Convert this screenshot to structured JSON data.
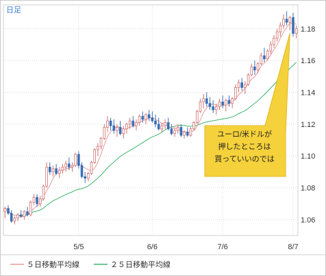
{
  "chart_data": {
    "type": "candlestick",
    "period_label": "日足",
    "y_ticks": [
      1.06,
      1.08,
      1.1,
      1.12,
      1.14,
      1.16,
      1.18
    ],
    "ylim": [
      1.05,
      1.195
    ],
    "x_ticks": [
      "5/5",
      "6/6",
      "7/6",
      "8/7"
    ],
    "x_tick_index": [
      23,
      46,
      68,
      90
    ],
    "grid": true,
    "candles": [
      [
        1.065,
        1.068,
        1.061,
        1.067
      ],
      [
        1.067,
        1.069,
        1.063,
        1.064
      ],
      [
        1.064,
        1.066,
        1.058,
        1.059
      ],
      [
        1.059,
        1.062,
        1.057,
        1.061
      ],
      [
        1.061,
        1.064,
        1.059,
        1.063
      ],
      [
        1.063,
        1.066,
        1.061,
        1.062
      ],
      [
        1.062,
        1.066,
        1.06,
        1.065
      ],
      [
        1.065,
        1.068,
        1.062,
        1.063
      ],
      [
        1.063,
        1.072,
        1.062,
        1.071
      ],
      [
        1.071,
        1.076,
        1.069,
        1.074
      ],
      [
        1.074,
        1.076,
        1.068,
        1.07
      ],
      [
        1.07,
        1.075,
        1.068,
        1.073
      ],
      [
        1.073,
        1.082,
        1.072,
        1.081
      ],
      [
        1.081,
        1.096,
        1.08,
        1.093
      ],
      [
        1.093,
        1.096,
        1.088,
        1.09
      ],
      [
        1.09,
        1.094,
        1.087,
        1.092
      ],
      [
        1.092,
        1.095,
        1.088,
        1.089
      ],
      [
        1.089,
        1.093,
        1.086,
        1.091
      ],
      [
        1.091,
        1.095,
        1.089,
        1.093
      ],
      [
        1.093,
        1.097,
        1.09,
        1.095
      ],
      [
        1.095,
        1.099,
        1.091,
        1.093
      ],
      [
        1.093,
        1.096,
        1.09,
        1.094
      ],
      [
        1.094,
        1.102,
        1.093,
        1.101
      ],
      [
        1.101,
        1.103,
        1.092,
        1.094
      ],
      [
        1.094,
        1.096,
        1.086,
        1.087
      ],
      [
        1.087,
        1.09,
        1.083,
        1.086
      ],
      [
        1.086,
        1.09,
        1.084,
        1.089
      ],
      [
        1.089,
        1.097,
        1.088,
        1.096
      ],
      [
        1.096,
        1.105,
        1.095,
        1.104
      ],
      [
        1.104,
        1.108,
        1.1,
        1.106
      ],
      [
        1.106,
        1.112,
        1.104,
        1.111
      ],
      [
        1.111,
        1.12,
        1.11,
        1.118
      ],
      [
        1.118,
        1.125,
        1.115,
        1.122
      ],
      [
        1.122,
        1.124,
        1.116,
        1.119
      ],
      [
        1.119,
        1.123,
        1.114,
        1.116
      ],
      [
        1.116,
        1.12,
        1.112,
        1.118
      ],
      [
        1.118,
        1.122,
        1.113,
        1.114
      ],
      [
        1.114,
        1.119,
        1.111,
        1.117
      ],
      [
        1.117,
        1.121,
        1.114,
        1.12
      ],
      [
        1.12,
        1.124,
        1.117,
        1.122
      ],
      [
        1.122,
        1.125,
        1.118,
        1.119
      ],
      [
        1.119,
        1.123,
        1.116,
        1.121
      ],
      [
        1.121,
        1.126,
        1.119,
        1.125
      ],
      [
        1.125,
        1.128,
        1.121,
        1.123
      ],
      [
        1.123,
        1.127,
        1.12,
        1.126
      ],
      [
        1.126,
        1.129,
        1.122,
        1.124
      ],
      [
        1.124,
        1.128,
        1.121,
        1.122
      ],
      [
        1.122,
        1.126,
        1.118,
        1.12
      ],
      [
        1.12,
        1.124,
        1.116,
        1.117
      ],
      [
        1.117,
        1.121,
        1.115,
        1.119
      ],
      [
        1.119,
        1.123,
        1.117,
        1.121
      ],
      [
        1.121,
        1.124,
        1.116,
        1.117
      ],
      [
        1.117,
        1.12,
        1.113,
        1.114
      ],
      [
        1.114,
        1.118,
        1.112,
        1.116
      ],
      [
        1.116,
        1.12,
        1.114,
        1.118
      ],
      [
        1.118,
        1.12,
        1.112,
        1.113
      ],
      [
        1.113,
        1.116,
        1.111,
        1.115
      ],
      [
        1.115,
        1.118,
        1.112,
        1.113
      ],
      [
        1.113,
        1.118,
        1.112,
        1.117
      ],
      [
        1.117,
        1.122,
        1.116,
        1.121
      ],
      [
        1.121,
        1.129,
        1.12,
        1.128
      ],
      [
        1.128,
        1.136,
        1.127,
        1.134
      ],
      [
        1.134,
        1.139,
        1.13,
        1.136
      ],
      [
        1.136,
        1.14,
        1.131,
        1.133
      ],
      [
        1.133,
        1.137,
        1.129,
        1.131
      ],
      [
        1.131,
        1.135,
        1.127,
        1.129
      ],
      [
        1.129,
        1.133,
        1.126,
        1.131
      ],
      [
        1.131,
        1.136,
        1.129,
        1.134
      ],
      [
        1.134,
        1.138,
        1.13,
        1.132
      ],
      [
        1.132,
        1.136,
        1.128,
        1.135
      ],
      [
        1.135,
        1.138,
        1.131,
        1.133
      ],
      [
        1.133,
        1.137,
        1.13,
        1.136
      ],
      [
        1.136,
        1.145,
        1.135,
        1.143
      ],
      [
        1.143,
        1.148,
        1.14,
        1.146
      ],
      [
        1.146,
        1.149,
        1.141,
        1.143
      ],
      [
        1.143,
        1.147,
        1.139,
        1.145
      ],
      [
        1.145,
        1.152,
        1.144,
        1.151
      ],
      [
        1.151,
        1.158,
        1.15,
        1.156
      ],
      [
        1.156,
        1.16,
        1.151,
        1.154
      ],
      [
        1.154,
        1.159,
        1.152,
        1.158
      ],
      [
        1.158,
        1.165,
        1.157,
        1.163
      ],
      [
        1.163,
        1.168,
        1.159,
        1.161
      ],
      [
        1.161,
        1.167,
        1.16,
        1.166
      ],
      [
        1.166,
        1.172,
        1.164,
        1.17
      ],
      [
        1.17,
        1.176,
        1.168,
        1.174
      ],
      [
        1.174,
        1.18,
        1.172,
        1.178
      ],
      [
        1.178,
        1.184,
        1.175,
        1.182
      ],
      [
        1.182,
        1.189,
        1.18,
        1.186
      ],
      [
        1.186,
        1.191,
        1.182,
        1.184
      ],
      [
        1.184,
        1.188,
        1.179,
        1.187
      ],
      [
        1.187,
        1.19,
        1.175,
        1.177
      ],
      [
        1.177,
        1.182,
        1.174,
        1.18
      ]
    ],
    "series": [
      {
        "name": "５日移動平均線",
        "color": "#e69a9a"
      },
      {
        "name": "２５日移動平均線",
        "color": "#3db36b"
      }
    ],
    "colors": {
      "up": "#ffffff",
      "up_stroke": "#d07070",
      "down": "#3a6fb5",
      "grid": "#d9d9d9"
    },
    "annotation": {
      "lines": [
        "ユーロ/米ドルが",
        "押したところは",
        "買っていいのでは"
      ],
      "fill": "#f5d13b"
    }
  }
}
